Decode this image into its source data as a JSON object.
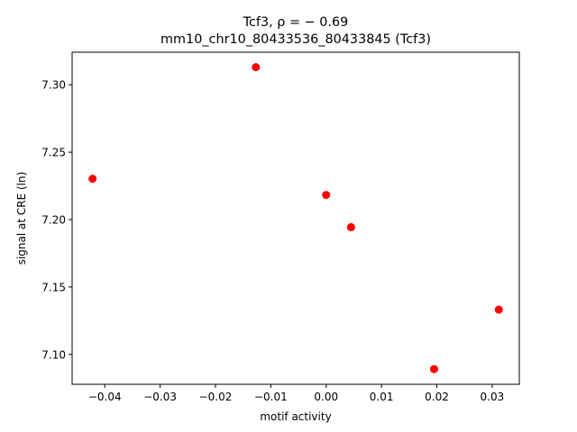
{
  "chart_data": {
    "type": "scatter",
    "title_line1": "Tcf3, ρ = − 0.69",
    "title_line2": "mm10_chr10_80433536_80433845 (Tcf3)",
    "xlabel": "motif activity",
    "ylabel": "signal at CRE (ln)",
    "xlim": [
      -0.0459,
      0.0349
    ],
    "ylim": [
      7.0778,
      7.3242
    ],
    "xticks": [
      -0.04,
      -0.03,
      -0.02,
      -0.01,
      0.0,
      0.01,
      0.02,
      0.03
    ],
    "xtick_labels": [
      "−0.04",
      "−0.03",
      "−0.02",
      "−0.01",
      "0.00",
      "0.01",
      "0.02",
      "0.03"
    ],
    "yticks": [
      7.1,
      7.15,
      7.2,
      7.25,
      7.3
    ],
    "ytick_labels": [
      "7.10",
      "7.15",
      "7.20",
      "7.25",
      "7.30"
    ],
    "grid": false,
    "marker_color": "#ff0000",
    "points": [
      {
        "x": -0.0422,
        "y": 7.2303
      },
      {
        "x": -0.0127,
        "y": 7.3131
      },
      {
        "x": 0.0,
        "y": 7.2183
      },
      {
        "x": 0.0045,
        "y": 7.1944
      },
      {
        "x": 0.0195,
        "y": 7.0891
      },
      {
        "x": 0.0312,
        "y": 7.1332
      }
    ]
  }
}
